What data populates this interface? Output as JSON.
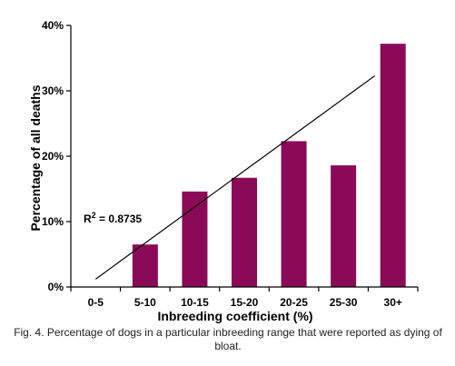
{
  "chart_data": {
    "type": "bar",
    "categories": [
      "0-5",
      "5-10",
      "10-15",
      "15-20",
      "20-25",
      "25-30",
      "30+"
    ],
    "values": [
      0,
      6.5,
      14.6,
      16.7,
      22.3,
      18.6,
      37.2
    ],
    "xlabel": "Inbreeding coefficient (%)",
    "ylabel": "Percentage of all deaths",
    "ylim": [
      0,
      40
    ],
    "yticks": [
      "0%",
      "10%",
      "20%",
      "30%",
      "40%"
    ],
    "trendline": {
      "type": "linear",
      "start": 1.2,
      "end": 32.3
    },
    "annotation": {
      "label": "R",
      "superscript": "2",
      "value": " = 0.8735"
    },
    "bar_color": "#8b0a57",
    "grid": false,
    "legend": "none"
  },
  "caption": "Fig. 4. Percentage of dogs in a particular inbreeding range that were reported as dying of bloat."
}
